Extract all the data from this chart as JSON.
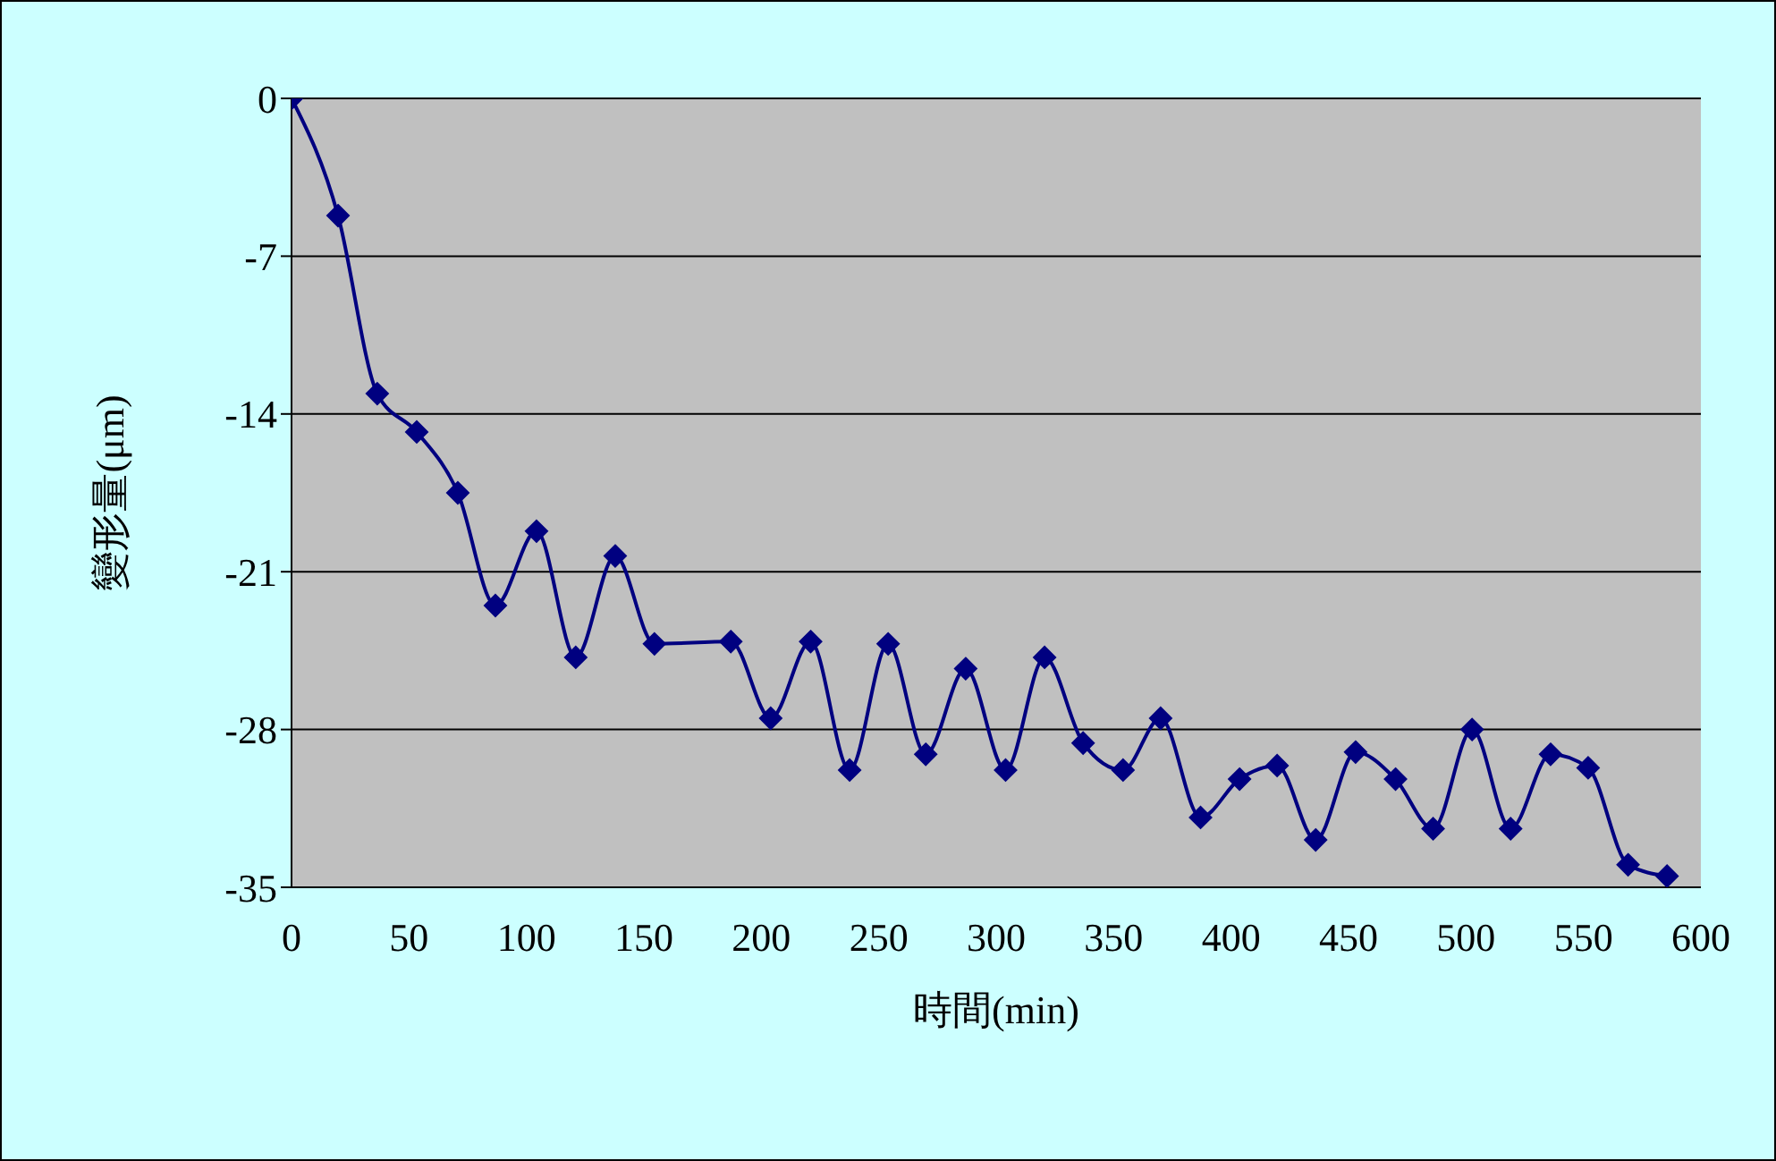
{
  "chart_data": {
    "type": "line",
    "xlabel": "時間(min)",
    "ylabel": "變形量(μm)",
    "series": [
      {
        "color": "#000080",
        "x": [
          0,
          19.8,
          36.5,
          53.3,
          70.8,
          86.8,
          104.3,
          121,
          137.8,
          154.5,
          187,
          204,
          221,
          237.6,
          254,
          270,
          287,
          304,
          320.6,
          337,
          354,
          370,
          387,
          403.6,
          419.6,
          436,
          453,
          470,
          486,
          502.6,
          519,
          536,
          552,
          569,
          585.6
        ],
        "values": [
          0,
          -5.2,
          -13.1,
          -14.8,
          -17.5,
          -22.5,
          -19.2,
          -24.8,
          -20.3,
          -24.2,
          -24.1,
          -27.5,
          -24.1,
          -29.8,
          -24.2,
          -29.1,
          -25.3,
          -29.8,
          -24.8,
          -28.6,
          -29.8,
          -27.5,
          -31.9,
          -30.2,
          -29.6,
          -32.9,
          -29,
          -30.2,
          -32.4,
          -28,
          -32.4,
          -29.1,
          -29.7,
          -34,
          -34.5
        ]
      }
    ],
    "xlim": [
      0,
      600
    ],
    "xticks": [
      0,
      50,
      100,
      150,
      200,
      250,
      300,
      350,
      400,
      450,
      500,
      550,
      600
    ],
    "ylim": [
      -35,
      0
    ],
    "yticks": [
      0,
      -7,
      -14,
      -21,
      -28,
      -35
    ],
    "grid": "y",
    "legend": false,
    "marker": "diamond",
    "line_style": "solid"
  }
}
